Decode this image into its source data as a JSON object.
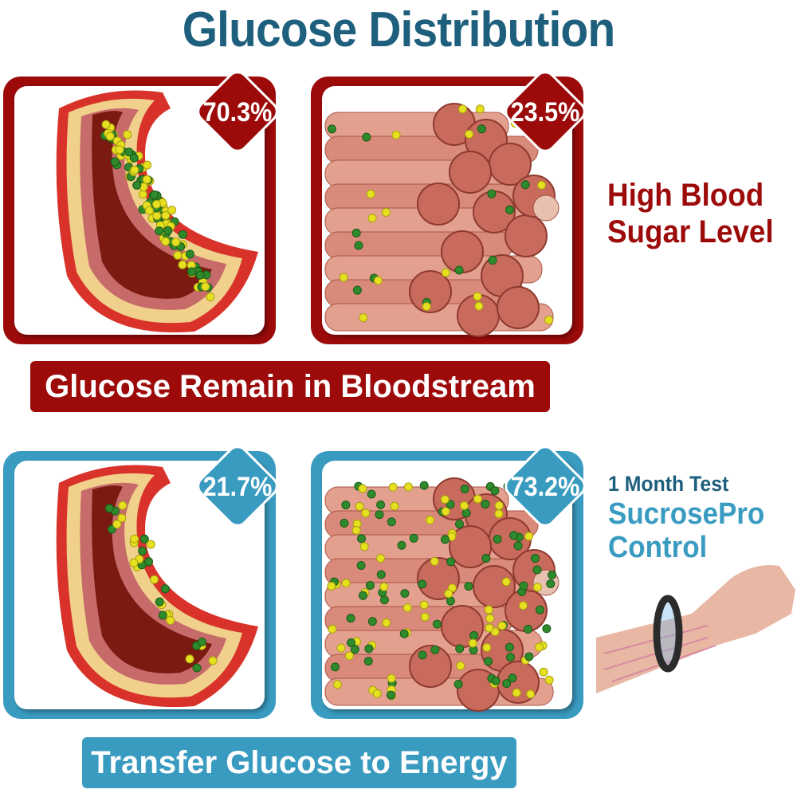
{
  "title": "Glucose Distribution",
  "colors": {
    "title": "#1d5f7c",
    "high": "#9c0a0a",
    "control": "#3a9bc1",
    "glucose_yellow": "#e6e020",
    "green_dot": "#2e8a2a"
  },
  "high_blood_sugar": {
    "label_line1": "High Blood",
    "label_line2": "Sugar Level",
    "vessel_percent": "70.3%",
    "muscle_percent": "23.5%",
    "banner": "Glucose Remain in Bloodstream"
  },
  "control": {
    "test_label": "1 Month Test",
    "label_line1": "SucrosePro",
    "label_line2": "Control",
    "vessel_percent": "21.7%",
    "muscle_percent": "73.2%",
    "banner": "Transfer Glucose to Energy"
  }
}
